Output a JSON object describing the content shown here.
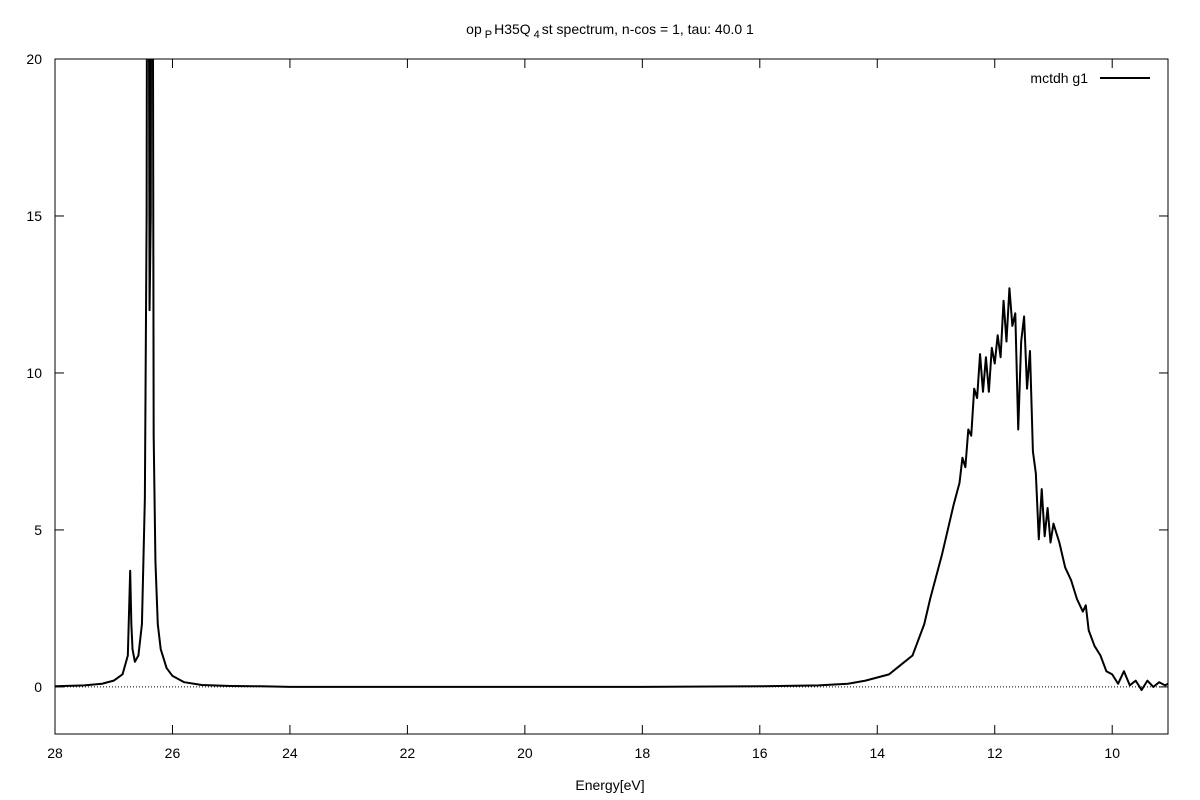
{
  "chart_data": {
    "type": "line",
    "title_parts": [
      "op",
      "P",
      "H35Q",
      "4",
      "st spectrum, n-cos = 1, tau: 40.0 1"
    ],
    "x_label": "Energy[eV]",
    "xlim": [
      28,
      9.05
    ],
    "ylim": [
      -1.5,
      20
    ],
    "xticks": [
      28,
      26,
      24,
      22,
      20,
      18,
      16,
      14,
      12,
      10
    ],
    "yticks": [
      0,
      5,
      10,
      15,
      20
    ],
    "legend": "top-right",
    "series": [
      {
        "name": "mctdh g1",
        "color": "#000000",
        "x": [
          28,
          27.5,
          27.2,
          27.0,
          26.85,
          26.76,
          26.72,
          26.7,
          26.68,
          26.64,
          26.58,
          26.52,
          26.47,
          26.44,
          26.42,
          26.39,
          26.37,
          26.35,
          26.32,
          26.29,
          26.25,
          26.2,
          26.1,
          26.0,
          25.8,
          25.5,
          25,
          24.5,
          24,
          22,
          20,
          18,
          16,
          15,
          14.5,
          14.2,
          14.0,
          13.8,
          13.6,
          13.4,
          13.3,
          13.2,
          13.1,
          13.0,
          12.9,
          12.8,
          12.7,
          12.6,
          12.55,
          12.5,
          12.45,
          12.4,
          12.35,
          12.3,
          12.25,
          12.2,
          12.15,
          12.1,
          12.05,
          12.0,
          11.95,
          11.9,
          11.85,
          11.8,
          11.75,
          11.7,
          11.65,
          11.6,
          11.55,
          11.5,
          11.45,
          11.4,
          11.35,
          11.3,
          11.25,
          11.2,
          11.15,
          11.1,
          11.05,
          11.0,
          10.9,
          10.8,
          10.7,
          10.6,
          10.5,
          10.45,
          10.4,
          10.3,
          10.2,
          10.1,
          10.0,
          9.9,
          9.8,
          9.7,
          9.6,
          9.5,
          9.4,
          9.3,
          9.2,
          9.1,
          9.05
        ],
        "values": [
          0.02,
          0.05,
          0.1,
          0.2,
          0.4,
          1.0,
          3.7,
          2.0,
          1.2,
          0.8,
          1.0,
          2.0,
          6,
          15,
          40,
          12,
          15,
          40,
          8,
          4,
          2,
          1.2,
          0.6,
          0.35,
          0.15,
          0.06,
          0.03,
          0.02,
          0,
          0,
          0,
          0,
          0.02,
          0.05,
          0.1,
          0.2,
          0.3,
          0.4,
          0.7,
          1.0,
          1.5,
          2.0,
          2.8,
          3.5,
          4.2,
          5.0,
          5.8,
          6.5,
          7.3,
          7.0,
          8.2,
          8.0,
          9.5,
          9.2,
          10.6,
          9.4,
          10.5,
          9.4,
          10.8,
          10.3,
          11.2,
          10.5,
          12.3,
          11.0,
          12.7,
          11.5,
          11.9,
          8.2,
          11.0,
          11.8,
          9.5,
          10.7,
          7.5,
          6.8,
          4.7,
          6.3,
          4.8,
          5.7,
          4.6,
          5.2,
          4.6,
          3.8,
          3.4,
          2.8,
          2.4,
          2.6,
          1.8,
          1.3,
          1.0,
          0.5,
          0.4,
          0.1,
          0.5,
          0.05,
          0.2,
          -0.1,
          0.2,
          0,
          0.15,
          0.05,
          0.1
        ]
      }
    ]
  }
}
